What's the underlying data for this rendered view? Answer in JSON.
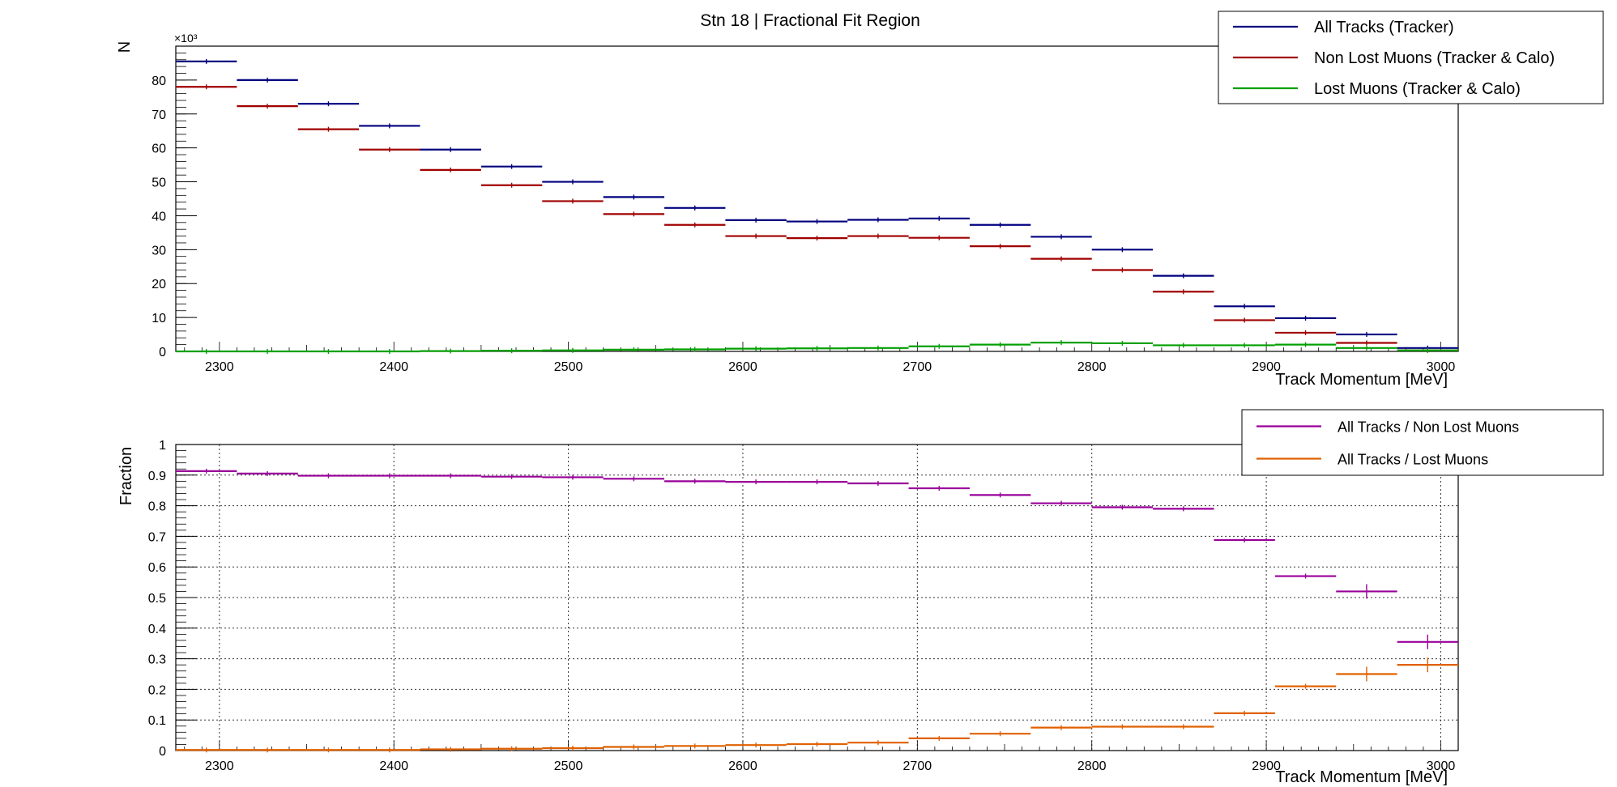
{
  "chart_data": [
    {
      "type": "histogram",
      "title": "Stn 18 | Fractional Fit Region",
      "xlabel": "Track Momentum [MeV]",
      "ylabel": "N",
      "y_multiplier": "×10³",
      "xlim": [
        2275,
        3010
      ],
      "ylim": [
        0,
        90
      ],
      "x_ticks": [
        2300,
        2400,
        2500,
        2600,
        2700,
        2800,
        2900,
        3000
      ],
      "y_ticks": [
        0,
        10,
        20,
        30,
        40,
        50,
        60,
        70,
        80
      ],
      "grid": false,
      "legend_position": "top-right",
      "bin_edges": [
        2275,
        2310,
        2345,
        2380,
        2415,
        2450,
        2485,
        2520,
        2555,
        2590,
        2625,
        2660,
        2695,
        2730,
        2765,
        2800,
        2835,
        2870,
        2905,
        2940,
        2975,
        3010
      ],
      "series": [
        {
          "name": "All Tracks (Tracker)",
          "color": "#00007f",
          "values": [
            85.5,
            80,
            73,
            66.5,
            59.5,
            54.5,
            50,
            45.5,
            42.3,
            38.7,
            38.3,
            38.8,
            39.2,
            37.3,
            33.8,
            30,
            22.3,
            13.3,
            9.8,
            5,
            1
          ]
        },
        {
          "name": "Non Lost Muons (Tracker & Calo)",
          "color": "#a00000",
          "values": [
            78,
            72.3,
            65.5,
            59.5,
            53.5,
            49,
            44.3,
            40.5,
            37.3,
            34,
            33.4,
            34,
            33.5,
            31,
            27.3,
            24,
            17.6,
            9.2,
            5.5,
            2.5,
            0.3
          ]
        },
        {
          "name": "Lost Muons (Tracker & Calo)",
          "color": "#00a000",
          "values": [
            0,
            0,
            0,
            0,
            0.1,
            0.2,
            0.3,
            0.5,
            0.6,
            0.8,
            0.9,
            1.0,
            1.5,
            2.0,
            2.6,
            2.4,
            1.8,
            1.8,
            2.0,
            1.0,
            0.3
          ]
        }
      ]
    },
    {
      "type": "histogram",
      "title": "",
      "xlabel": "Track Momentum [MeV]",
      "ylabel": "Fraction",
      "xlim": [
        2275,
        3010
      ],
      "ylim": [
        0,
        1
      ],
      "x_ticks": [
        2300,
        2400,
        2500,
        2600,
        2700,
        2800,
        2900,
        3000
      ],
      "y_ticks": [
        0,
        0.1,
        0.2,
        0.3,
        0.4,
        0.5,
        0.6,
        0.7,
        0.8,
        0.9,
        1
      ],
      "grid": true,
      "legend_position": "top-right",
      "bin_edges": [
        2275,
        2310,
        2345,
        2380,
        2415,
        2450,
        2485,
        2520,
        2555,
        2590,
        2625,
        2660,
        2695,
        2730,
        2765,
        2800,
        2835,
        2870,
        2905,
        2940,
        2975,
        3010
      ],
      "series": [
        {
          "name": "All Tracks / Non Lost Muons",
          "color": "#990099",
          "values": [
            0.913,
            0.905,
            0.898,
            0.898,
            0.898,
            0.895,
            0.893,
            0.888,
            0.88,
            0.878,
            0.878,
            0.873,
            0.857,
            0.835,
            0.808,
            0.795,
            0.79,
            0.688,
            0.57,
            0.52,
            0.355
          ]
        },
        {
          "name": "All Tracks / Lost Muons",
          "color": "#e06000",
          "values": [
            0.002,
            0.002,
            0.002,
            0.002,
            0.004,
            0.006,
            0.008,
            0.012,
            0.015,
            0.018,
            0.021,
            0.026,
            0.04,
            0.055,
            0.075,
            0.078,
            0.078,
            0.122,
            0.21,
            0.25,
            0.28
          ]
        }
      ]
    }
  ]
}
